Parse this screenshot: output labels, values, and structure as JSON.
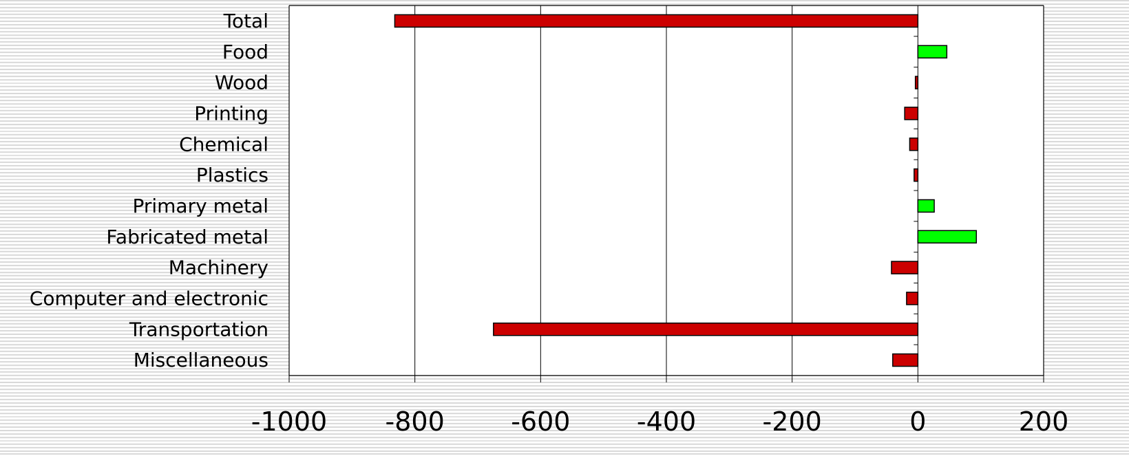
{
  "chart_data": {
    "type": "bar",
    "orientation": "horizontal",
    "categories": [
      "Total",
      "Food",
      "Wood",
      "Printing",
      "Chemical",
      "Plastics",
      "Primary metal",
      "Fabricated metal",
      "Machinery",
      "Computer and electronic",
      "Transportation",
      "Miscellaneous"
    ],
    "values": [
      -832,
      46,
      -4,
      -21,
      -13,
      -6,
      26,
      93,
      -42,
      -18,
      -675,
      -40
    ],
    "xlim": [
      -1000,
      200
    ],
    "xticks": [
      -1000,
      -800,
      -600,
      -400,
      -200,
      0,
      200
    ],
    "xtick_labels": [
      "-1000",
      "-800",
      "-600",
      "-400",
      "-200",
      "0",
      "200"
    ],
    "grid": "vertical",
    "legend": "none",
    "title": "",
    "xlabel": "",
    "ylabel": "",
    "colors": {
      "positive": "#00ff00",
      "negative": "#cc0000",
      "bar_stroke": "#000000",
      "grid": "#000000",
      "plot_background": "#ffffff"
    }
  }
}
